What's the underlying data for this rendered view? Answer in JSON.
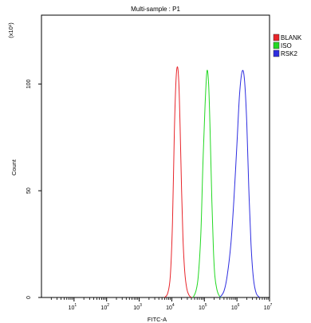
{
  "chart_data": {
    "type": "line",
    "title": "Multi-sample : P1",
    "xlabel": "FITC-A",
    "ylabel": "Count",
    "y_scale_note": "(x10¹)",
    "x_scale": "log",
    "xlim": [
      1,
      10000000
    ],
    "ylim": [
      0,
      130
    ],
    "x_ticks": [
      {
        "value": 10,
        "base": "10",
        "exp": "1"
      },
      {
        "value": 100,
        "base": "10",
        "exp": "2"
      },
      {
        "value": 1000,
        "base": "10",
        "exp": "3"
      },
      {
        "value": 10000,
        "base": "10",
        "exp": "4"
      },
      {
        "value": 100000,
        "base": "10",
        "exp": "5"
      },
      {
        "value": 1000000,
        "base": "10",
        "exp": "6"
      },
      {
        "value": 10000000,
        "base": "10",
        "exp": "7"
      }
    ],
    "y_ticks": [
      {
        "value": 0,
        "label": "0"
      },
      {
        "value": 50,
        "label": "50"
      },
      {
        "value": 100,
        "label": "100"
      }
    ],
    "grid": false,
    "legend_position": "top-right",
    "series": [
      {
        "name": "BLANK",
        "color": "#e8242a",
        "x": [
          6000,
          7500,
          9000,
          10500,
          12000,
          13500,
          15000,
          16500,
          18000,
          20000,
          22000,
          25000,
          29000,
          34000,
          40000
        ],
        "y": [
          0,
          2,
          10,
          35,
          78,
          102,
          108,
          100,
          80,
          50,
          28,
          12,
          4,
          1,
          0
        ]
      },
      {
        "name": "ISO",
        "color": "#22d822",
        "x": [
          45000,
          55000,
          65000,
          78000,
          90000,
          105000,
          120000,
          135000,
          150000,
          170000,
          190000,
          210000,
          240000,
          280000,
          330000
        ],
        "y": [
          0,
          3,
          10,
          30,
          62,
          90,
          106,
          100,
          78,
          45,
          22,
          10,
          4,
          1,
          0
        ]
      },
      {
        "name": "RSK2",
        "color": "#2d2de0",
        "x": [
          300000,
          400000,
          500000,
          650000,
          800000,
          1000000,
          1200000,
          1450000,
          1700000,
          2000000,
          2300000,
          2700000,
          3200000,
          3900000,
          5000000
        ],
        "y": [
          0,
          3,
          10,
          25,
          45,
          72,
          95,
          106,
          102,
          82,
          52,
          25,
          9,
          2,
          0
        ]
      }
    ]
  }
}
